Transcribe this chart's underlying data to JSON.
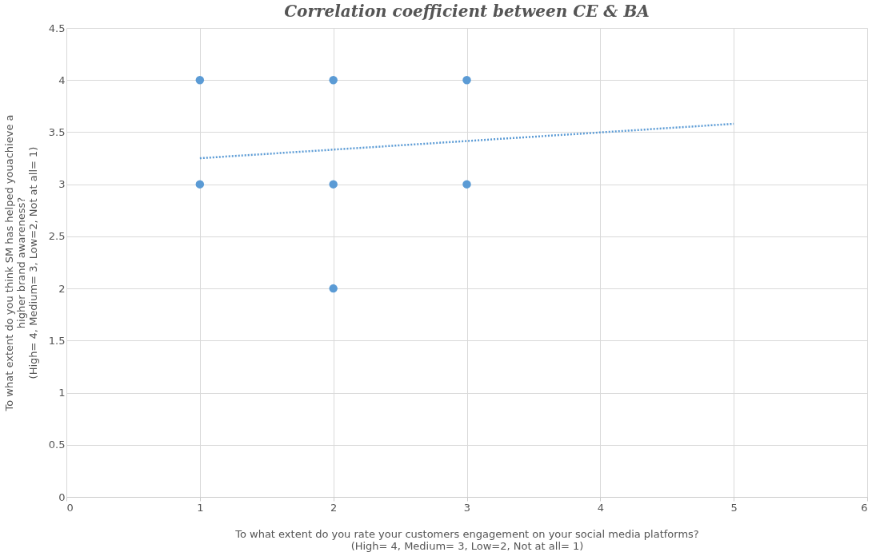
{
  "chart_data": {
    "type": "scatter",
    "title": "Correlation coefficient between CE & BA",
    "xlabel": "To what extent do you rate your customers engagement on your social media platforms?\n(High= 4, Medium= 3, Low=2, Not at all= 1)",
    "ylabel": "To what extent do you think SM has helped youachieve a\nhigher brand awareness?\n(High= 4, Medium= 3, Low=2, Not at all= 1)",
    "series": [
      {
        "color": "#5b9bd5",
        "marker": "circle",
        "x": [
          1,
          1,
          2,
          2,
          2,
          3,
          3
        ],
        "values": [
          4,
          3,
          4,
          3,
          2,
          4,
          3
        ]
      },
      {
        "type": "line",
        "color": "#5b9bd5",
        "line_style": "dotted",
        "x": [
          1,
          5
        ],
        "values": [
          3.25,
          3.58
        ]
      }
    ],
    "xlim": [
      0,
      6
    ],
    "xticks": [
      0,
      1,
      2,
      3,
      4,
      5,
      6
    ],
    "ylim": [
      0,
      4.5
    ],
    "yticks": [
      0,
      0.5,
      1,
      1.5,
      2,
      2.5,
      3,
      3.5,
      4,
      4.5
    ],
    "grid": true
  }
}
